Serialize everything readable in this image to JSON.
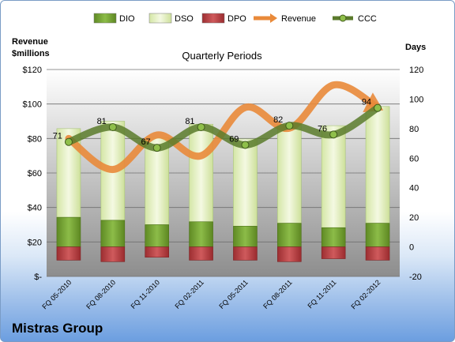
{
  "chart_data": {
    "type": "bar",
    "subtitle": "Quarterly Periods",
    "y_left_label": [
      "Revenue",
      "$millions"
    ],
    "y_right_label": "Days",
    "y_left_ticks": [
      "$-",
      "$20",
      "$40",
      "$60",
      "$80",
      "$100",
      "$120"
    ],
    "y_left_range": [
      0,
      120
    ],
    "y_right_range": [
      -20,
      120
    ],
    "y_right_ticks": [
      -20,
      0,
      20,
      40,
      60,
      80,
      100,
      120
    ],
    "categories": [
      "FQ 05-2010",
      "FQ 08-2010",
      "FQ 11-2010",
      "FQ 02-2011",
      "FQ 05-2011",
      "FQ 08-2011",
      "FQ 11-2011",
      "FQ 02-2012"
    ],
    "series": [
      {
        "name": "DIO",
        "axis": "days",
        "color": "#76a336",
        "values": [
          20,
          18,
          15,
          17,
          14,
          16,
          13,
          16
        ]
      },
      {
        "name": "DSO",
        "axis": "days",
        "color": "#e4f0c3",
        "values": [
          60,
          67,
          59,
          66,
          59,
          67,
          69,
          79
        ]
      },
      {
        "name": "DPO",
        "axis": "days",
        "color": "#b43a3d",
        "values": [
          -9,
          -10,
          -7,
          -9,
          -9,
          -10,
          -8,
          -9
        ]
      },
      {
        "name": "Revenue",
        "axis": "money",
        "color": "#e98a3a",
        "values": [
          80,
          62,
          82,
          70,
          98,
          86,
          111,
          98
        ]
      },
      {
        "name": "CCC",
        "axis": "days",
        "color": "#5b7b2c",
        "values": [
          71,
          81,
          67,
          81,
          69,
          82,
          76,
          94
        ]
      }
    ],
    "data_labels": [
      "71",
      "81",
      "67",
      "81",
      "69",
      "82",
      "76",
      "94"
    ],
    "legend_position": "top",
    "grid": true
  },
  "company": "Mistras Group"
}
